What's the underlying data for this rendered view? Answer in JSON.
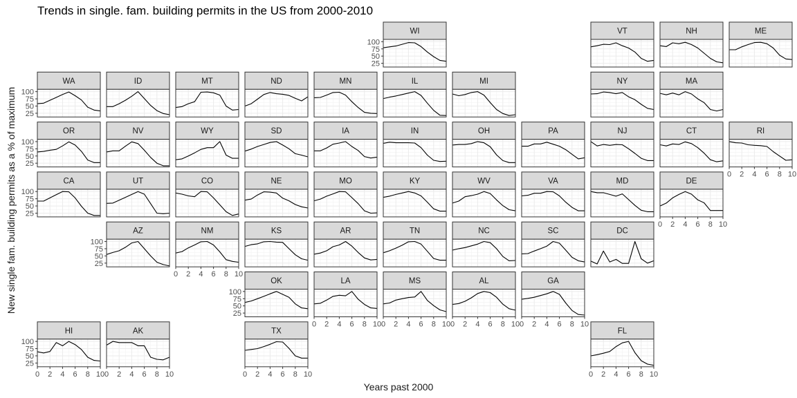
{
  "title": "Trends in single. fam. building permits in the US from 2000-2010",
  "chart_data": {
    "type": "line",
    "title": "Trends in single. fam. building permits in the US from 2000-2010",
    "xlabel": "Years past 2000",
    "ylabel": "New single fam. building permits as a % of maximum",
    "x": [
      0,
      1,
      2,
      3,
      4,
      5,
      6,
      7,
      8,
      9,
      10
    ],
    "xlim": [
      0,
      10
    ],
    "ylim": [
      12,
      108
    ],
    "x_ticks": [
      "0",
      "2",
      "4",
      "6",
      "8",
      "10"
    ],
    "y_ticks": [
      "25",
      "50",
      "75",
      "100"
    ],
    "facets": [
      {
        "name": "WI",
        "values": [
          79,
          82,
          85,
          91,
          97,
          96,
          83,
          64,
          48,
          35,
          32
        ]
      },
      {
        "name": "VT",
        "values": [
          82,
          86,
          91,
          90,
          96,
          86,
          78,
          64,
          42,
          32,
          35
        ]
      },
      {
        "name": "NH",
        "values": [
          86,
          83,
          96,
          93,
          98,
          90,
          78,
          60,
          42,
          30,
          27
        ]
      },
      {
        "name": "ME",
        "values": [
          72,
          72,
          82,
          90,
          97,
          98,
          93,
          78,
          53,
          40,
          38
        ]
      },
      {
        "name": "WA",
        "values": [
          58,
          60,
          70,
          80,
          90,
          99,
          86,
          71,
          46,
          36,
          33
        ]
      },
      {
        "name": "ID",
        "values": [
          48,
          48,
          58,
          70,
          84,
          100,
          76,
          52,
          34,
          24,
          20
        ]
      },
      {
        "name": "MT",
        "values": [
          45,
          48,
          58,
          65,
          98,
          99,
          96,
          88,
          50,
          36,
          38
        ]
      },
      {
        "name": "ND",
        "values": [
          50,
          58,
          74,
          90,
          97,
          93,
          91,
          87,
          77,
          68,
          82
        ]
      },
      {
        "name": "MN",
        "values": [
          79,
          80,
          88,
          97,
          98,
          88,
          65,
          45,
          28,
          25,
          24
        ]
      },
      {
        "name": "IL",
        "values": [
          76,
          81,
          85,
          90,
          95,
          100,
          87,
          60,
          35,
          18,
          17
        ]
      },
      {
        "name": "MI",
        "values": [
          92,
          86,
          90,
          97,
          100,
          88,
          62,
          38,
          24,
          17,
          20
        ]
      },
      {
        "name": "NY",
        "values": [
          92,
          93,
          99,
          97,
          93,
          97,
          82,
          72,
          56,
          42,
          38
        ]
      },
      {
        "name": "MA",
        "values": [
          94,
          89,
          95,
          89,
          100,
          92,
          75,
          62,
          38,
          33,
          38
        ]
      },
      {
        "name": "OR",
        "values": [
          64,
          66,
          70,
          73,
          85,
          99,
          88,
          66,
          36,
          27,
          27
        ]
      },
      {
        "name": "NV",
        "values": [
          64,
          68,
          68,
          84,
          99,
          93,
          70,
          45,
          25,
          16,
          16
        ]
      },
      {
        "name": "WY",
        "values": [
          37,
          40,
          50,
          61,
          73,
          79,
          79,
          100,
          53,
          42,
          42
        ]
      },
      {
        "name": "SD",
        "values": [
          67,
          74,
          83,
          90,
          97,
          100,
          88,
          75,
          58,
          53,
          47
        ]
      },
      {
        "name": "IA",
        "values": [
          68,
          68,
          78,
          91,
          95,
          100,
          83,
          69,
          48,
          43,
          46
        ]
      },
      {
        "name": "IN",
        "values": [
          94,
          98,
          96,
          96,
          96,
          95,
          79,
          53,
          35,
          31,
          32
        ]
      },
      {
        "name": "OH",
        "values": [
          88,
          90,
          90,
          93,
          100,
          96,
          82,
          54,
          34,
          27,
          27
        ]
      },
      {
        "name": "PA",
        "values": [
          84,
          84,
          92,
          92,
          98,
          91,
          84,
          72,
          56,
          40,
          44
        ]
      },
      {
        "name": "NJ",
        "values": [
          100,
          85,
          90,
          87,
          90,
          89,
          75,
          59,
          42,
          34,
          34
        ]
      },
      {
        "name": "CT",
        "values": [
          89,
          85,
          92,
          90,
          99,
          93,
          79,
          60,
          37,
          30,
          33
        ]
      },
      {
        "name": "RI",
        "values": [
          100,
          96,
          95,
          89,
          87,
          86,
          83,
          65,
          50,
          35,
          37
        ]
      },
      {
        "name": "CA",
        "values": [
          67,
          67,
          78,
          89,
          100,
          99,
          78,
          49,
          25,
          17,
          17
        ]
      },
      {
        "name": "UT",
        "values": [
          59,
          60,
          70,
          80,
          90,
          100,
          91,
          58,
          25,
          23,
          25
        ]
      },
      {
        "name": "CO",
        "values": [
          95,
          91,
          85,
          82,
          100,
          99,
          78,
          54,
          30,
          17,
          22
        ]
      },
      {
        "name": "NE",
        "values": [
          70,
          74,
          88,
          99,
          98,
          95,
          77,
          68,
          55,
          47,
          43
        ]
      },
      {
        "name": "MO",
        "values": [
          68,
          74,
          84,
          92,
          100,
          99,
          79,
          58,
          33,
          25,
          26
        ]
      },
      {
        "name": "KY",
        "values": [
          80,
          84,
          90,
          95,
          100,
          95,
          85,
          63,
          40,
          32,
          32
        ]
      },
      {
        "name": "WV",
        "values": [
          60,
          67,
          82,
          86,
          91,
          100,
          93,
          71,
          51,
          37,
          33
        ]
      },
      {
        "name": "VA",
        "values": [
          85,
          87,
          94,
          94,
          100,
          99,
          85,
          63,
          45,
          33,
          33
        ]
      },
      {
        "name": "MD",
        "values": [
          100,
          96,
          96,
          90,
          84,
          92,
          72,
          52,
          35,
          30,
          30
        ]
      },
      {
        "name": "DE",
        "values": [
          50,
          60,
          78,
          90,
          100,
          91,
          71,
          61,
          34,
          34,
          34
        ]
      },
      {
        "name": "AZ",
        "values": [
          55,
          62,
          68,
          80,
          95,
          100,
          75,
          50,
          28,
          20,
          15
        ]
      },
      {
        "name": "NM",
        "values": [
          60,
          65,
          78,
          88,
          99,
          100,
          88,
          64,
          37,
          31,
          28
        ]
      },
      {
        "name": "KS",
        "values": [
          83,
          89,
          92,
          99,
          100,
          98,
          97,
          75,
          54,
          40,
          35
        ]
      },
      {
        "name": "AR",
        "values": [
          56,
          60,
          68,
          82,
          88,
          100,
          84,
          62,
          43,
          36,
          38
        ]
      },
      {
        "name": "TN",
        "values": [
          61,
          68,
          77,
          87,
          99,
          100,
          91,
          66,
          41,
          35,
          35
        ]
      },
      {
        "name": "NC",
        "values": [
          70,
          75,
          79,
          85,
          91,
          100,
          96,
          75,
          48,
          33,
          34
        ]
      },
      {
        "name": "SC",
        "values": [
          57,
          58,
          67,
          75,
          84,
          100,
          94,
          70,
          45,
          33,
          29
        ]
      },
      {
        "name": "DC",
        "values": [
          32,
          22,
          67,
          29,
          38,
          24,
          24,
          100,
          40,
          25,
          33
        ]
      },
      {
        "name": "OK",
        "values": [
          62,
          67,
          75,
          83,
          92,
          100,
          90,
          80,
          57,
          43,
          40
        ]
      },
      {
        "name": "LA",
        "values": [
          57,
          59,
          70,
          83,
          87,
          85,
          100,
          73,
          55,
          43,
          41
        ]
      },
      {
        "name": "MS",
        "values": [
          57,
          60,
          70,
          75,
          79,
          81,
          100,
          69,
          51,
          36,
          30
        ]
      },
      {
        "name": "AL",
        "values": [
          55,
          58,
          66,
          78,
          93,
          100,
          96,
          80,
          56,
          40,
          35
        ]
      },
      {
        "name": "GA",
        "values": [
          73,
          76,
          80,
          86,
          92,
          100,
          90,
          60,
          34,
          20,
          18
        ]
      },
      {
        "name": "HI",
        "values": [
          64,
          60,
          65,
          96,
          85,
          100,
          89,
          72,
          45,
          34,
          32
        ]
      },
      {
        "name": "AK",
        "values": [
          87,
          100,
          96,
          96,
          96,
          85,
          85,
          45,
          38,
          36,
          45
        ]
      },
      {
        "name": "TX",
        "values": [
          69,
          72,
          75,
          82,
          90,
          99,
          98,
          76,
          50,
          42,
          42
        ]
      },
      {
        "name": "FL",
        "values": [
          50,
          54,
          59,
          65,
          82,
          95,
          100,
          61,
          33,
          21,
          17
        ]
      }
    ]
  }
}
